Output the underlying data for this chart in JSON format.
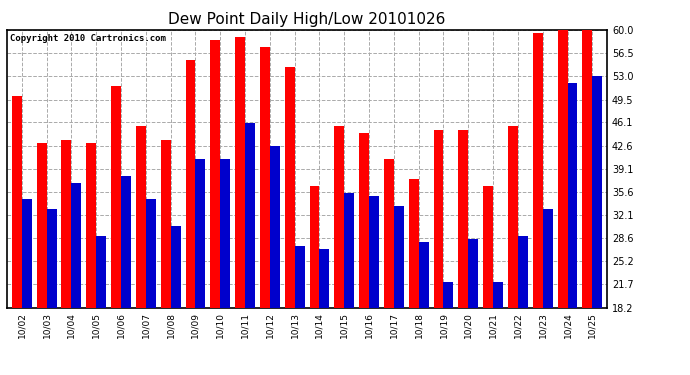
{
  "title": "Dew Point Daily High/Low 20101026",
  "copyright": "Copyright 2010 Cartronics.com",
  "dates": [
    "10/02",
    "10/03",
    "10/04",
    "10/05",
    "10/06",
    "10/07",
    "10/08",
    "10/09",
    "10/10",
    "10/11",
    "10/12",
    "10/13",
    "10/14",
    "10/15",
    "10/16",
    "10/17",
    "10/18",
    "10/19",
    "10/20",
    "10/21",
    "10/22",
    "10/23",
    "10/24",
    "10/25"
  ],
  "highs": [
    50.0,
    43.0,
    43.5,
    43.0,
    51.5,
    45.5,
    43.5,
    55.5,
    58.5,
    59.0,
    57.5,
    54.5,
    36.5,
    45.5,
    44.5,
    40.5,
    37.5,
    45.0,
    45.0,
    36.5,
    45.5,
    59.5,
    60.0,
    60.0
  ],
  "lows": [
    34.5,
    33.0,
    37.0,
    29.0,
    38.0,
    34.5,
    30.5,
    40.5,
    40.5,
    46.0,
    42.5,
    27.5,
    27.0,
    35.5,
    35.0,
    33.5,
    28.0,
    22.0,
    28.5,
    22.0,
    29.0,
    33.0,
    52.0,
    53.0
  ],
  "high_color": "#ff0000",
  "low_color": "#0000cc",
  "bg_color": "#ffffff",
  "grid_color": "#aaaaaa",
  "ymin": 18.2,
  "ymax": 60.0,
  "yticks": [
    18.2,
    21.7,
    25.2,
    28.6,
    32.1,
    35.6,
    39.1,
    42.6,
    46.1,
    49.5,
    53.0,
    56.5,
    60.0
  ],
  "title_fontsize": 11,
  "copyright_fontsize": 6.5
}
